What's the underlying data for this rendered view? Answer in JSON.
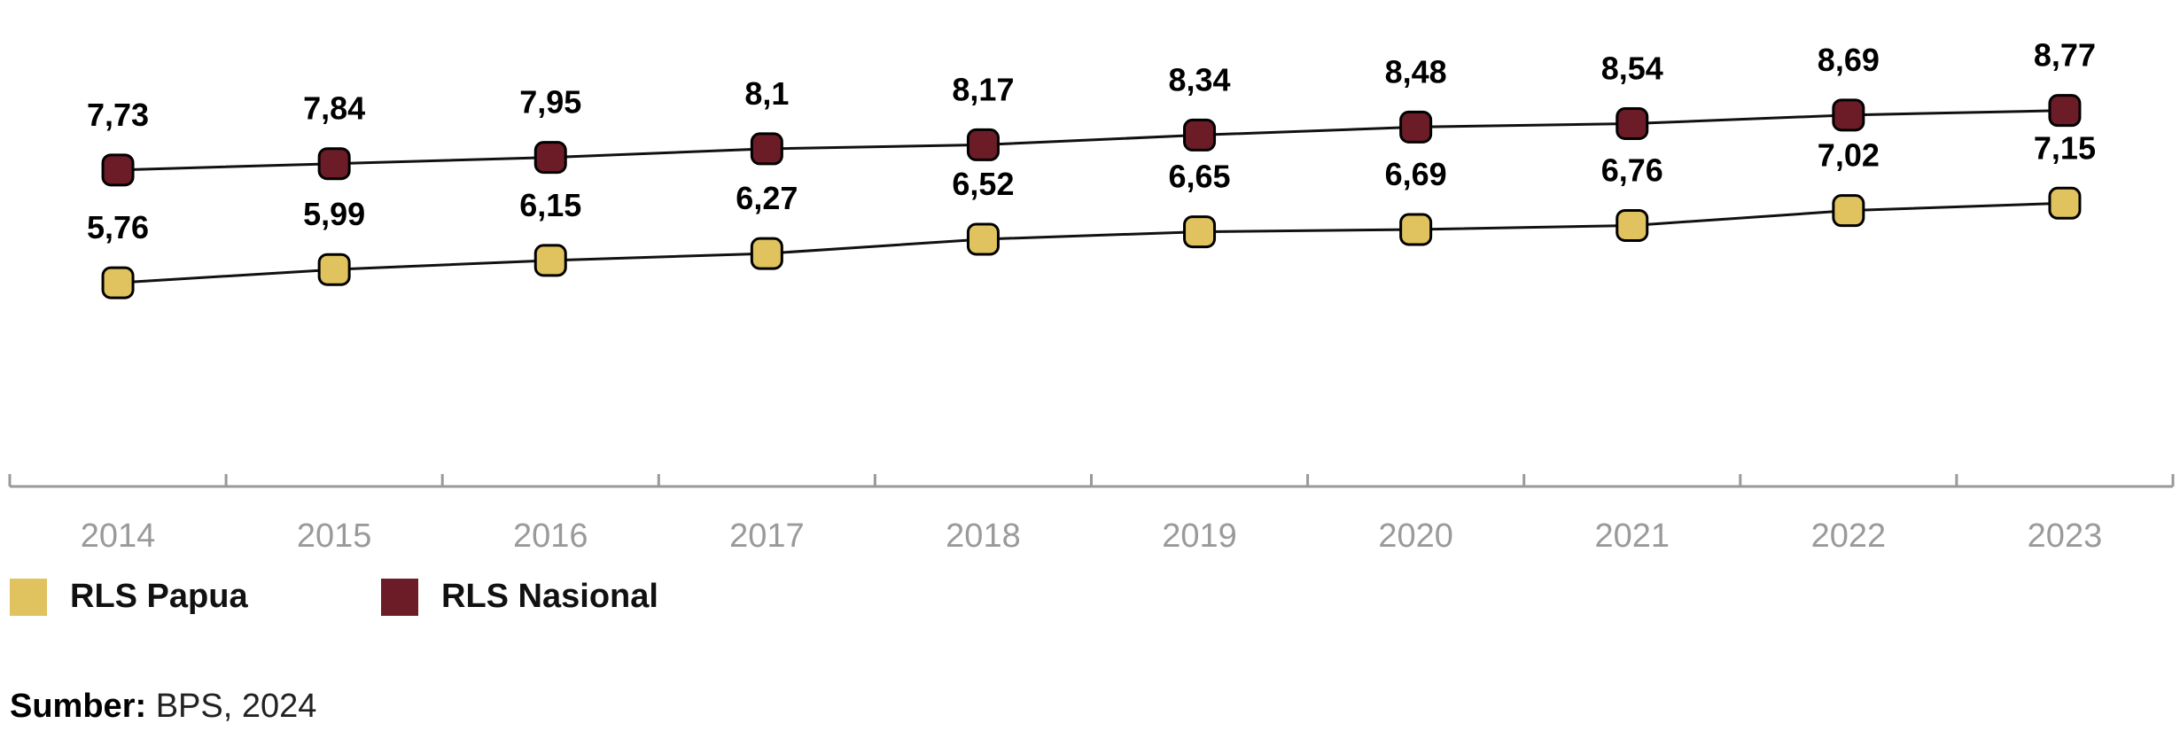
{
  "chart_data": {
    "type": "line",
    "title": "",
    "xlabel": "",
    "ylabel": "",
    "x": [
      "2014",
      "2015",
      "2016",
      "2017",
      "2018",
      "2019",
      "2020",
      "2021",
      "2022",
      "2023"
    ],
    "ylim": [
      2.2,
      10.7
    ],
    "grid": false,
    "legend_placement": "bottom-left",
    "series": [
      {
        "name": "RLS Papua",
        "color": "#E0C25E",
        "values": [
          5.76,
          5.99,
          6.15,
          6.27,
          6.52,
          6.65,
          6.69,
          6.76,
          7.02,
          7.15
        ],
        "labels": [
          "5,76",
          "5,99",
          "6,15",
          "6,27",
          "6,52",
          "6,65",
          "6,69",
          "6,76",
          "7,02",
          "7,15"
        ]
      },
      {
        "name": "RLS Nasional",
        "color": "#6B1C26",
        "values": [
          7.73,
          7.84,
          7.95,
          8.1,
          8.17,
          8.34,
          8.48,
          8.54,
          8.69,
          8.77
        ],
        "labels": [
          "7,73",
          "7,84",
          "7,95",
          "8,1",
          "8,17",
          "8,34",
          "8,48",
          "8,54",
          "8,69",
          "8,77"
        ]
      }
    ]
  },
  "source": {
    "label": "Sumber:",
    "text": " BPS, 2024"
  }
}
